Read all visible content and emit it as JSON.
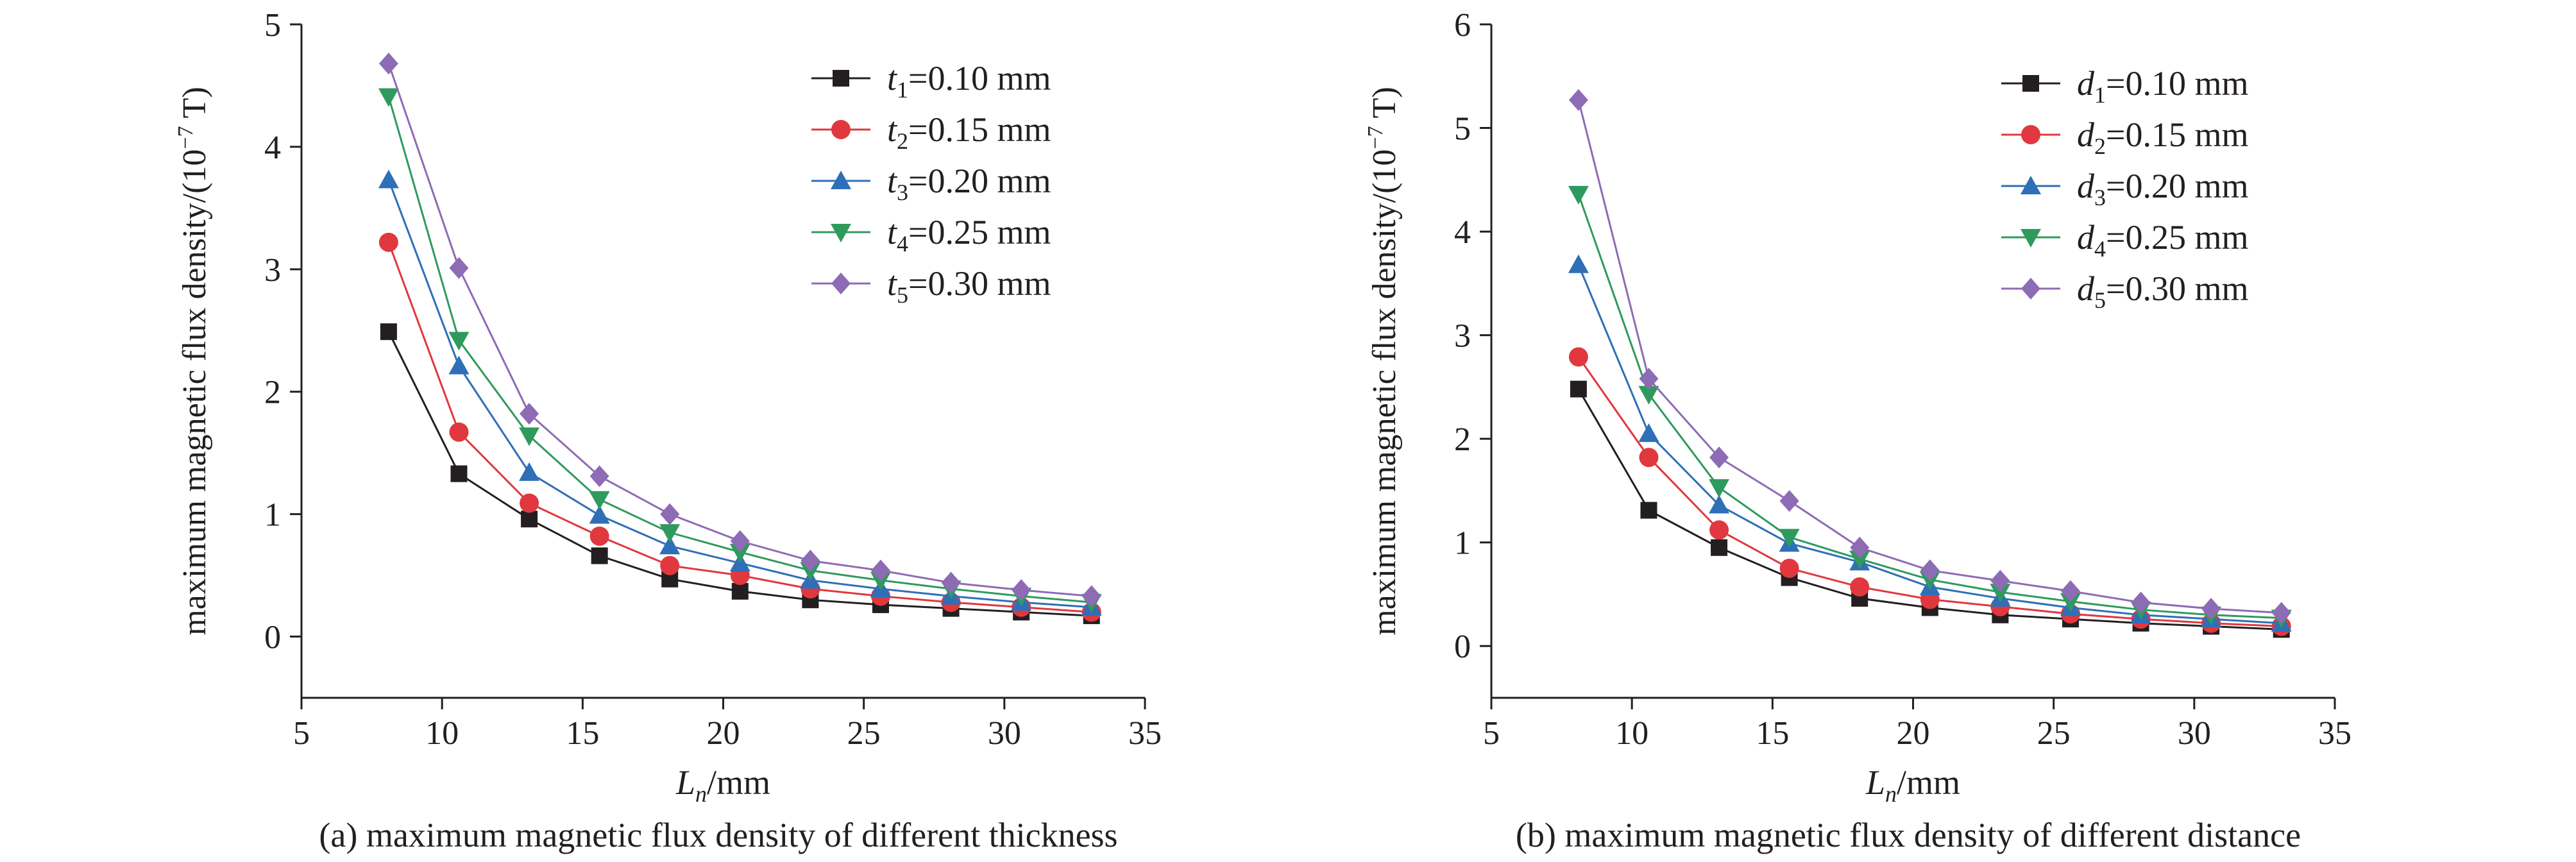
{
  "colors": {
    "axis": "#231f20",
    "series": [
      "#231f20",
      "#e0383e",
      "#2e6fb7",
      "#2f9a5d",
      "#8e6bb5"
    ]
  },
  "markers": [
    "square",
    "circle",
    "triangle-up",
    "triangle-down",
    "diamond"
  ],
  "chart_data": [
    {
      "type": "line",
      "caption": "(a) maximum magnetic flux density of different thickness",
      "xlabel": {
        "main": "L",
        "sub": "n",
        "rest": "/mm"
      },
      "ylabel": "maximum magnetic flux density/(10",
      "ylabel_exp": "−7",
      "ylabel_tail": " T)",
      "xlim": [
        5,
        35
      ],
      "ylim": [
        -0.5,
        5
      ],
      "xticks": [
        5,
        10,
        15,
        20,
        25,
        30,
        35
      ],
      "yticks": [
        0,
        1,
        2,
        3,
        4,
        5
      ],
      "legend_position": "top-right",
      "x": [
        8.1,
        10.6,
        13.1,
        15.6,
        18.1,
        20.6,
        23.1,
        25.6,
        28.1,
        30.6,
        33.1
      ],
      "series": [
        {
          "name": {
            "var": "t",
            "sub": "1",
            "rest": "=0.10 mm"
          },
          "values": [
            2.49,
            1.33,
            0.96,
            0.66,
            0.47,
            0.37,
            0.3,
            0.26,
            0.23,
            0.2,
            0.17
          ]
        },
        {
          "name": {
            "var": "t",
            "sub": "2",
            "rest": "=0.15 mm"
          },
          "values": [
            3.22,
            1.67,
            1.09,
            0.82,
            0.58,
            0.5,
            0.39,
            0.33,
            0.28,
            0.24,
            0.2
          ]
        },
        {
          "name": {
            "var": "t",
            "sub": "3",
            "rest": "=0.20 mm"
          },
          "values": [
            3.73,
            2.21,
            1.34,
            0.99,
            0.74,
            0.6,
            0.46,
            0.39,
            0.33,
            0.28,
            0.24
          ]
        },
        {
          "name": {
            "var": "t",
            "sub": "4",
            "rest": "=0.25 mm"
          },
          "values": [
            4.41,
            2.42,
            1.64,
            1.12,
            0.85,
            0.69,
            0.54,
            0.46,
            0.39,
            0.33,
            0.28
          ]
        },
        {
          "name": {
            "var": "t",
            "sub": "5",
            "rest": "=0.30 mm"
          },
          "values": [
            4.68,
            3.01,
            1.82,
            1.31,
            1.0,
            0.78,
            0.62,
            0.54,
            0.44,
            0.38,
            0.33
          ]
        }
      ]
    },
    {
      "type": "line",
      "caption": "(b) maximum magnetic flux density of different distance",
      "xlabel": {
        "main": "L",
        "sub": "n",
        "rest": "/mm"
      },
      "ylabel": "maximum magnetic flux density/(10",
      "ylabel_exp": "−7",
      "ylabel_tail": " T)",
      "xlim": [
        5,
        35
      ],
      "ylim": [
        -0.5,
        6
      ],
      "xticks": [
        5,
        10,
        15,
        20,
        25,
        30,
        35
      ],
      "yticks": [
        0,
        1,
        2,
        3,
        4,
        5,
        6
      ],
      "legend_position": "top-right",
      "x": [
        8.1,
        10.6,
        13.1,
        15.6,
        18.1,
        20.6,
        23.1,
        25.6,
        28.1,
        30.6,
        33.1
      ],
      "series": [
        {
          "name": {
            "var": "d",
            "sub": "1",
            "rest": "=0.10 mm"
          },
          "values": [
            2.48,
            1.31,
            0.95,
            0.66,
            0.46,
            0.37,
            0.3,
            0.26,
            0.22,
            0.19,
            0.16
          ]
        },
        {
          "name": {
            "var": "d",
            "sub": "2",
            "rest": "=0.15 mm"
          },
          "values": [
            2.79,
            1.82,
            1.12,
            0.75,
            0.57,
            0.45,
            0.38,
            0.31,
            0.26,
            0.22,
            0.19
          ]
        },
        {
          "name": {
            "var": "d",
            "sub": "3",
            "rest": "=0.20 mm"
          },
          "values": [
            3.68,
            2.05,
            1.36,
            0.99,
            0.81,
            0.57,
            0.46,
            0.37,
            0.3,
            0.26,
            0.22
          ]
        },
        {
          "name": {
            "var": "d",
            "sub": "4",
            "rest": "=0.25 mm"
          },
          "values": [
            4.36,
            2.43,
            1.53,
            1.05,
            0.84,
            0.64,
            0.52,
            0.43,
            0.35,
            0.3,
            0.27
          ]
        },
        {
          "name": {
            "var": "d",
            "sub": "5",
            "rest": "=0.30 mm"
          },
          "values": [
            5.27,
            2.58,
            1.82,
            1.4,
            0.95,
            0.73,
            0.63,
            0.53,
            0.42,
            0.36,
            0.32
          ]
        }
      ]
    }
  ]
}
